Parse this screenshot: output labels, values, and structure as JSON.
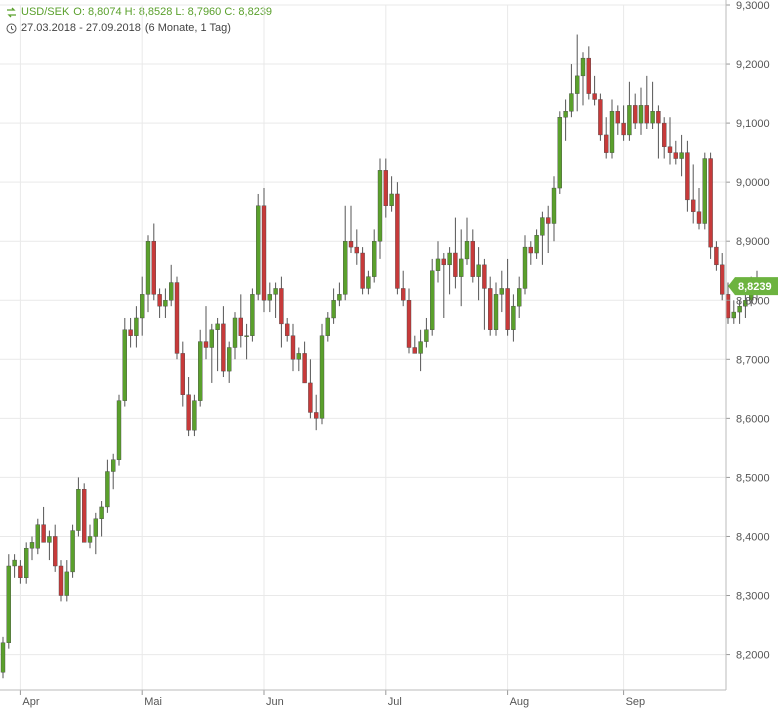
{
  "header": {
    "symbol": "USD/SEK",
    "ohlc_text": "O: 8,8074  H: 8,8528  L: 8,7960  C: 8,8239",
    "range": "27.03.2018 - 27.09.2018",
    "period": "(6 Monate, 1 Tag)",
    "symbol_icon": "currency-exchange-icon",
    "range_icon": "clock-icon"
  },
  "colors": {
    "up": "#5aa02c",
    "down": "#c73a3a",
    "grid": "#e9e9e9",
    "last_price_bg": "#6cb33f"
  },
  "chart_data": {
    "type": "candlestick",
    "ylim": [
      8.14,
      9.3
    ],
    "y_ticks": [
      "8,2000",
      "8,3000",
      "8,4000",
      "8,5000",
      "8,6000",
      "8,7000",
      "8,8000",
      "8,9000",
      "9,0000",
      "9,1000",
      "9,2000",
      "9,3000"
    ],
    "y_tick_values": [
      8.2,
      8.3,
      8.4,
      8.5,
      8.6,
      8.7,
      8.8,
      8.9,
      9.0,
      9.1,
      9.2,
      9.3
    ],
    "x_labels": [
      "Apr",
      "Mai",
      "Jun",
      "Jul",
      "Aug",
      "Sep"
    ],
    "x_label_index": [
      3,
      24,
      45,
      66,
      87,
      107
    ],
    "last_price": "8,8239",
    "last_value": 8.8239,
    "candles": [
      [
        8.17,
        8.23,
        8.16,
        8.22
      ],
      [
        8.22,
        8.37,
        8.21,
        8.35
      ],
      [
        8.35,
        8.37,
        8.33,
        8.36
      ],
      [
        8.35,
        8.36,
        8.32,
        8.33
      ],
      [
        8.33,
        8.39,
        8.32,
        8.38
      ],
      [
        8.38,
        8.4,
        8.36,
        8.39
      ],
      [
        8.38,
        8.43,
        8.37,
        8.42
      ],
      [
        8.42,
        8.45,
        8.39,
        8.39
      ],
      [
        8.39,
        8.41,
        8.36,
        8.4
      ],
      [
        8.4,
        8.42,
        8.34,
        8.35
      ],
      [
        8.35,
        8.36,
        8.29,
        8.3
      ],
      [
        8.3,
        8.36,
        8.29,
        8.34
      ],
      [
        8.34,
        8.42,
        8.33,
        8.41
      ],
      [
        8.41,
        8.5,
        8.4,
        8.48
      ],
      [
        8.48,
        8.49,
        8.4,
        8.39
      ],
      [
        8.39,
        8.42,
        8.38,
        8.4
      ],
      [
        8.4,
        8.44,
        8.37,
        8.43
      ],
      [
        8.43,
        8.46,
        8.4,
        8.45
      ],
      [
        8.45,
        8.53,
        8.44,
        8.51
      ],
      [
        8.51,
        8.54,
        8.48,
        8.53
      ],
      [
        8.53,
        8.64,
        8.52,
        8.63
      ],
      [
        8.63,
        8.77,
        8.62,
        8.75
      ],
      [
        8.75,
        8.77,
        8.72,
        8.74
      ],
      [
        8.74,
        8.79,
        8.72,
        8.77
      ],
      [
        8.77,
        8.84,
        8.74,
        8.81
      ],
      [
        8.81,
        8.91,
        8.78,
        8.9
      ],
      [
        8.9,
        8.93,
        8.8,
        8.81
      ],
      [
        8.81,
        8.82,
        8.77,
        8.79
      ],
      [
        8.79,
        8.82,
        8.77,
        8.8
      ],
      [
        8.8,
        8.86,
        8.79,
        8.83
      ],
      [
        8.83,
        8.84,
        8.7,
        8.71
      ],
      [
        8.71,
        8.73,
        8.62,
        8.64
      ],
      [
        8.64,
        8.67,
        8.57,
        8.58
      ],
      [
        8.58,
        8.64,
        8.57,
        8.63
      ],
      [
        8.63,
        8.75,
        8.62,
        8.73
      ],
      [
        8.73,
        8.79,
        8.7,
        8.72
      ],
      [
        8.72,
        8.76,
        8.66,
        8.75
      ],
      [
        8.75,
        8.77,
        8.68,
        8.76
      ],
      [
        8.76,
        8.79,
        8.67,
        8.68
      ],
      [
        8.68,
        8.73,
        8.66,
        8.72
      ],
      [
        8.72,
        8.78,
        8.7,
        8.77
      ],
      [
        8.77,
        8.81,
        8.72,
        8.74
      ],
      [
        8.74,
        8.76,
        8.7,
        8.74
      ],
      [
        8.74,
        8.82,
        8.73,
        8.81
      ],
      [
        8.81,
        8.98,
        8.8,
        8.96
      ],
      [
        8.96,
        8.99,
        8.78,
        8.8
      ],
      [
        8.8,
        8.83,
        8.78,
        8.81
      ],
      [
        8.81,
        8.83,
        8.77,
        8.82
      ],
      [
        8.82,
        8.84,
        8.72,
        8.76
      ],
      [
        8.76,
        8.77,
        8.73,
        8.74
      ],
      [
        8.74,
        8.76,
        8.68,
        8.7
      ],
      [
        8.7,
        8.72,
        8.68,
        8.71
      ],
      [
        8.71,
        8.73,
        8.66,
        8.66
      ],
      [
        8.66,
        8.7,
        8.6,
        8.61
      ],
      [
        8.61,
        8.64,
        8.58,
        8.6
      ],
      [
        8.6,
        8.76,
        8.59,
        8.74
      ],
      [
        8.74,
        8.78,
        8.73,
        8.77
      ],
      [
        8.77,
        8.82,
        8.76,
        8.8
      ],
      [
        8.8,
        8.83,
        8.79,
        8.81
      ],
      [
        8.81,
        8.96,
        8.8,
        8.9
      ],
      [
        8.9,
        8.96,
        8.88,
        8.89
      ],
      [
        8.89,
        8.92,
        8.86,
        8.88
      ],
      [
        8.88,
        8.89,
        8.81,
        8.82
      ],
      [
        8.82,
        8.85,
        8.81,
        8.84
      ],
      [
        8.84,
        8.92,
        8.83,
        8.9
      ],
      [
        8.9,
        9.04,
        8.87,
        9.02
      ],
      [
        9.02,
        9.04,
        8.94,
        8.96
      ],
      [
        8.96,
        9.01,
        8.95,
        8.98
      ],
      [
        8.98,
        9.0,
        8.81,
        8.82
      ],
      [
        8.82,
        8.85,
        8.79,
        8.8
      ],
      [
        8.8,
        8.82,
        8.71,
        8.72
      ],
      [
        8.72,
        8.74,
        8.71,
        8.71
      ],
      [
        8.71,
        8.75,
        8.68,
        8.73
      ],
      [
        8.73,
        8.77,
        8.72,
        8.75
      ],
      [
        8.75,
        8.87,
        8.74,
        8.85
      ],
      [
        8.85,
        8.9,
        8.83,
        8.87
      ],
      [
        8.87,
        8.88,
        8.77,
        8.86
      ],
      [
        8.86,
        8.89,
        8.81,
        8.88
      ],
      [
        8.88,
        8.94,
        8.82,
        8.84
      ],
      [
        8.84,
        8.92,
        8.79,
        8.87
      ],
      [
        8.87,
        8.94,
        8.86,
        8.9
      ],
      [
        8.9,
        8.92,
        8.83,
        8.84
      ],
      [
        8.84,
        8.89,
        8.8,
        8.86
      ],
      [
        8.86,
        8.87,
        8.75,
        8.82
      ],
      [
        8.82,
        8.84,
        8.74,
        8.75
      ],
      [
        8.75,
        8.83,
        8.74,
        8.81
      ],
      [
        8.81,
        8.85,
        8.78,
        8.82
      ],
      [
        8.82,
        8.87,
        8.74,
        8.75
      ],
      [
        8.75,
        8.81,
        8.73,
        8.79
      ],
      [
        8.79,
        8.84,
        8.77,
        8.82
      ],
      [
        8.82,
        8.91,
        8.81,
        8.89
      ],
      [
        8.89,
        8.9,
        8.86,
        8.88
      ],
      [
        8.88,
        8.92,
        8.87,
        8.91
      ],
      [
        8.91,
        8.95,
        8.86,
        8.94
      ],
      [
        8.94,
        8.96,
        8.88,
        8.93
      ],
      [
        8.93,
        9.01,
        8.9,
        8.99
      ],
      [
        8.99,
        9.12,
        8.98,
        9.11
      ],
      [
        9.11,
        9.14,
        9.07,
        9.12
      ],
      [
        9.12,
        9.2,
        9.11,
        9.15
      ],
      [
        9.15,
        9.25,
        9.12,
        9.18
      ],
      [
        9.18,
        9.22,
        9.13,
        9.21
      ],
      [
        9.21,
        9.23,
        9.14,
        9.15
      ],
      [
        9.15,
        9.18,
        9.13,
        9.14
      ],
      [
        9.14,
        9.15,
        9.07,
        9.08
      ],
      [
        9.08,
        9.11,
        9.04,
        9.05
      ],
      [
        9.05,
        9.14,
        9.04,
        9.12
      ],
      [
        9.12,
        9.13,
        9.08,
        9.1
      ],
      [
        9.1,
        9.13,
        9.07,
        9.08
      ],
      [
        9.08,
        9.17,
        9.07,
        9.13
      ],
      [
        9.13,
        9.15,
        9.09,
        9.1
      ],
      [
        9.1,
        9.16,
        9.08,
        9.13
      ],
      [
        9.13,
        9.18,
        9.09,
        9.1
      ],
      [
        9.1,
        9.17,
        9.09,
        9.12
      ],
      [
        9.12,
        9.13,
        9.04,
        9.1
      ],
      [
        9.1,
        9.11,
        9.04,
        9.06
      ],
      [
        9.06,
        9.11,
        9.03,
        9.05
      ],
      [
        9.05,
        9.07,
        9.03,
        9.04
      ],
      [
        9.04,
        9.08,
        9.01,
        9.05
      ],
      [
        9.05,
        9.07,
        8.95,
        8.97
      ],
      [
        8.97,
        9.03,
        8.93,
        8.95
      ],
      [
        8.95,
        8.99,
        8.92,
        8.93
      ],
      [
        8.93,
        9.05,
        8.92,
        9.04
      ],
      [
        9.04,
        9.05,
        8.87,
        8.89
      ],
      [
        8.89,
        8.9,
        8.85,
        8.86
      ],
      [
        8.86,
        8.88,
        8.8,
        8.81
      ],
      [
        8.81,
        8.83,
        8.76,
        8.77
      ],
      [
        8.77,
        8.8,
        8.76,
        8.78
      ],
      [
        8.78,
        8.8,
        8.76,
        8.79
      ],
      [
        8.79,
        8.82,
        8.77,
        8.8
      ],
      [
        8.8,
        8.84,
        8.79,
        8.81
      ],
      [
        8.81,
        8.85,
        8.8,
        8.82
      ]
    ]
  }
}
